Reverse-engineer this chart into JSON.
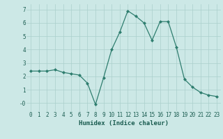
{
  "x": [
    0,
    1,
    2,
    3,
    4,
    5,
    6,
    7,
    8,
    9,
    10,
    11,
    12,
    13,
    14,
    15,
    16,
    17,
    18,
    19,
    20,
    21,
    22,
    23
  ],
  "y": [
    2.4,
    2.4,
    2.4,
    2.5,
    2.3,
    2.2,
    2.1,
    1.5,
    -0.1,
    1.9,
    4.0,
    5.3,
    6.9,
    6.5,
    6.0,
    4.7,
    6.1,
    6.1,
    4.2,
    1.8,
    1.2,
    0.8,
    0.6,
    0.5
  ],
  "line_color": "#2e7d6e",
  "marker": "D",
  "marker_size": 2.0,
  "bg_color": "#cce8e6",
  "grid_color": "#aacfcc",
  "xlabel": "Humidex (Indice chaleur)",
  "xlim": [
    -0.5,
    23.5
  ],
  "ylim": [
    -0.6,
    7.4
  ],
  "yticks": [
    0,
    1,
    2,
    3,
    4,
    5,
    6,
    7
  ],
  "ytick_labels": [
    "-0",
    "1",
    "2",
    "3",
    "4",
    "5",
    "6",
    "7"
  ],
  "xticks": [
    0,
    1,
    2,
    3,
    4,
    5,
    6,
    7,
    8,
    9,
    10,
    11,
    12,
    13,
    14,
    15,
    16,
    17,
    18,
    19,
    20,
    21,
    22,
    23
  ],
  "xtick_labels": [
    "0",
    "1",
    "2",
    "3",
    "4",
    "5",
    "6",
    "7",
    "8",
    "9",
    "10",
    "11",
    "12",
    "13",
    "14",
    "15",
    "16",
    "17",
    "18",
    "19",
    "20",
    "21",
    "22",
    "23"
  ],
  "tick_color": "#1a5c50",
  "label_fontsize": 6.5,
  "tick_fontsize": 5.5,
  "linewidth": 0.9
}
